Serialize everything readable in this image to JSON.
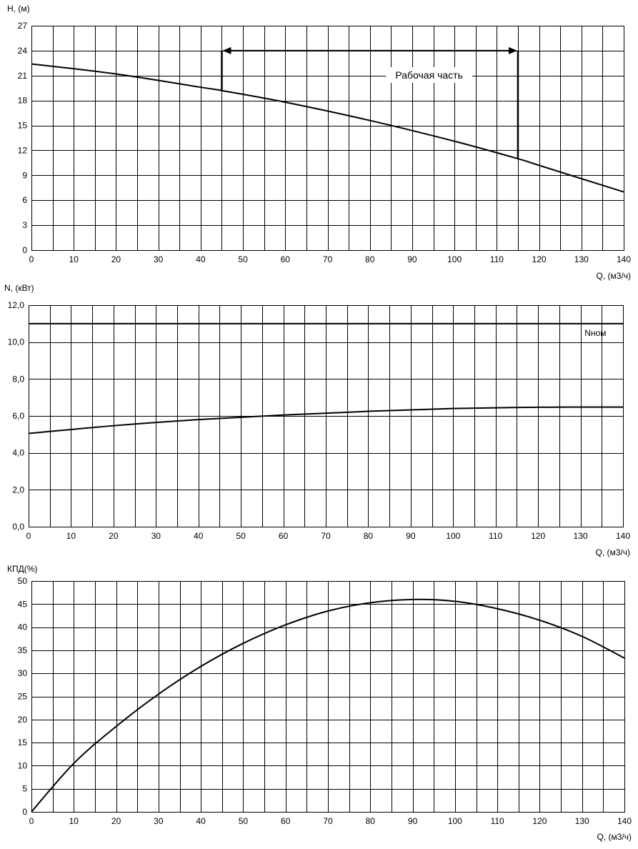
{
  "chart_data": [
    {
      "type": "line",
      "ylabel": "H, (м)",
      "xlabel": "Q, (м3/ч)",
      "xlim": [
        0,
        140
      ],
      "ylim": [
        0,
        27
      ],
      "x_ticks": [
        "0",
        "10",
        "20",
        "30",
        "40",
        "50",
        "60",
        "70",
        "80",
        "90",
        "100",
        "110",
        "120",
        "130",
        "140"
      ],
      "y_ticks": [
        "0",
        "3",
        "6",
        "9",
        "12",
        "15",
        "18",
        "21",
        "24",
        "27"
      ],
      "grid": true,
      "series": [
        {
          "x": [
            0,
            20,
            40,
            45,
            60,
            80,
            100,
            115,
            120,
            140
          ],
          "y": [
            22.4,
            21.2,
            19.6,
            19.2,
            17.8,
            15.6,
            13.1,
            11.0,
            10.2,
            7.0
          ]
        }
      ],
      "annotations": [
        {
          "text": "Рабочая часть",
          "x": 94,
          "y": 20.9
        }
      ],
      "working_range": {
        "x_start": 45,
        "x_end": 115,
        "arrow_y": 24
      }
    },
    {
      "type": "line",
      "ylabel": "N, (кВт)",
      "xlabel": "Q, (м3/ч)",
      "xlim": [
        0,
        140
      ],
      "ylim": [
        0,
        12
      ],
      "x_ticks": [
        "0",
        "10",
        "20",
        "30",
        "40",
        "50",
        "60",
        "70",
        "80",
        "90",
        "100",
        "110",
        "120",
        "130",
        "140"
      ],
      "y_ticks": [
        "0,0",
        "2,0",
        "4,0",
        "6,0",
        "8,0",
        "10,0",
        "12,0"
      ],
      "grid": true,
      "series": [
        {
          "x": [
            0,
            20,
            40,
            60,
            80,
            100,
            120,
            140
          ],
          "y": [
            5.05,
            5.47,
            5.8,
            6.05,
            6.25,
            6.4,
            6.47,
            6.48
          ]
        },
        {
          "name": "Nном",
          "x": [
            0,
            140
          ],
          "y": [
            11.0,
            11.0
          ]
        }
      ],
      "annotations": [
        {
          "text": "Nном",
          "x": 133.5,
          "y": 10.45
        }
      ]
    },
    {
      "type": "line",
      "ylabel": "КПД(%)",
      "xlabel": "Q, (м3/ч)",
      "xlim": [
        0,
        140
      ],
      "ylim": [
        0,
        50
      ],
      "x_ticks": [
        "0",
        "10",
        "20",
        "30",
        "40",
        "50",
        "60",
        "70",
        "80",
        "90",
        "100",
        "110",
        "120",
        "130",
        "140"
      ],
      "y_ticks": [
        "0",
        "5",
        "10",
        "15",
        "20",
        "25",
        "30",
        "35",
        "40",
        "45",
        "50"
      ],
      "grid": true,
      "series": [
        {
          "x": [
            0,
            10,
            20,
            30,
            40,
            50,
            60,
            70,
            80,
            90,
            100,
            110,
            120,
            130,
            140
          ],
          "y": [
            0,
            10.5,
            18.5,
            25.5,
            31.5,
            36.5,
            40.5,
            43.5,
            45.3,
            46.0,
            45.6,
            44.0,
            41.5,
            38.0,
            33.3
          ]
        }
      ]
    }
  ]
}
